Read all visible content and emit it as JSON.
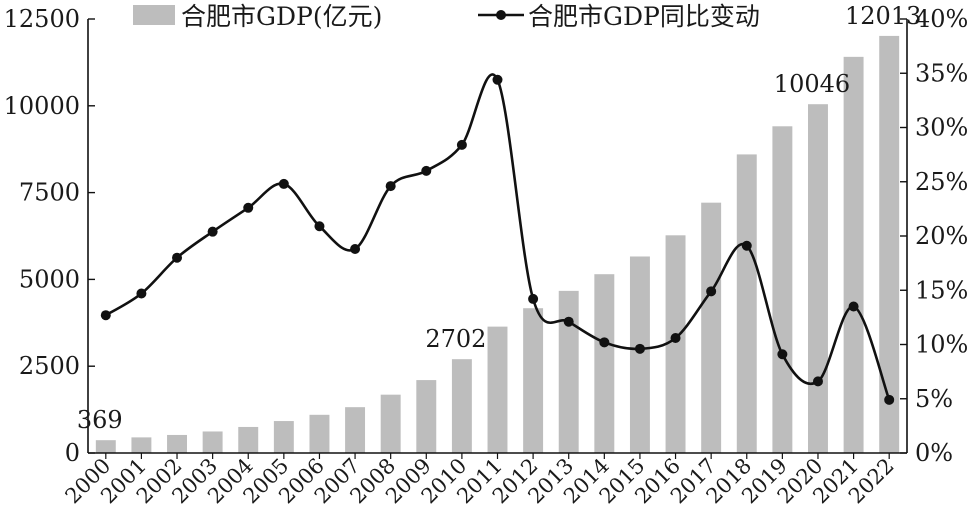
{
  "chart_data": {
    "type": "bar+line",
    "categories": [
      "2000",
      "2001",
      "2002",
      "2003",
      "2004",
      "2005",
      "2006",
      "2007",
      "2008",
      "2009",
      "2010",
      "2011",
      "2012",
      "2013",
      "2014",
      "2015",
      "2016",
      "2017",
      "2018",
      "2019",
      "2020",
      "2021",
      "2022"
    ],
    "series": [
      {
        "name": "合肥市GDP(亿元)",
        "type": "bar",
        "axis": "left",
        "color": "#bdbdbd",
        "values": [
          369,
          450,
          520,
          620,
          750,
          920,
          1100,
          1320,
          1680,
          2100,
          2702,
          3640,
          4170,
          4670,
          5150,
          5660,
          6270,
          7210,
          8600,
          9410,
          10046,
          11410,
          12013
        ]
      },
      {
        "name": "合肥市GDP同比变动",
        "type": "line",
        "axis": "right",
        "color": "#111111",
        "unit": "%",
        "values": [
          12.7,
          14.7,
          18.0,
          20.4,
          22.6,
          24.8,
          20.9,
          18.8,
          24.6,
          26.0,
          28.4,
          34.4,
          14.2,
          12.1,
          10.2,
          9.6,
          10.6,
          14.9,
          19.1,
          9.1,
          6.6,
          13.5,
          4.9
        ]
      }
    ],
    "ylim_left": [
      0,
      12500
    ],
    "yticks_left": [
      "0",
      "2500",
      "5000",
      "7500",
      "10000",
      "12500"
    ],
    "ylim_right": [
      0,
      40
    ],
    "yticks_right": [
      "0%",
      "5%",
      "10%",
      "15%",
      "20%",
      "25%",
      "30%",
      "35%",
      "40%"
    ],
    "annotations": [
      {
        "index": 0,
        "text": "369"
      },
      {
        "index": 10,
        "text": "2702"
      },
      {
        "index": 20,
        "text": "10046"
      },
      {
        "index": 22,
        "text": "12013"
      }
    ],
    "legend_position": "top",
    "grid": false
  }
}
